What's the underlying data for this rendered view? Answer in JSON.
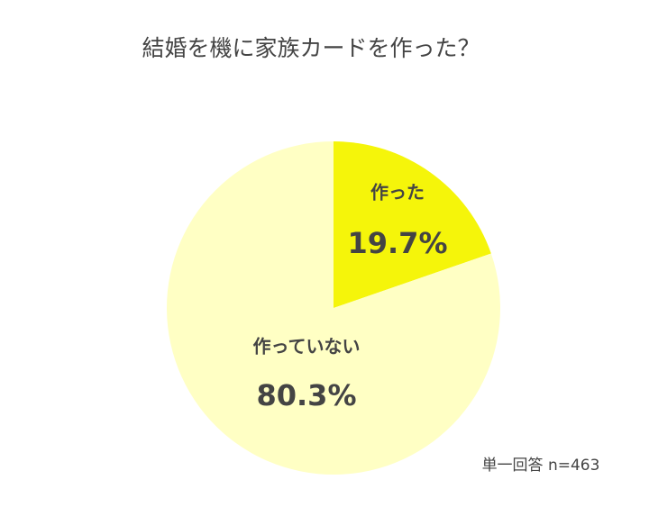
{
  "chart_data": {
    "type": "pie",
    "title": "結婚を機に家族カードを作った？",
    "categories": [
      "作った",
      "作っていない"
    ],
    "values": [
      19.7,
      80.3
    ],
    "value_labels": [
      "19.7%",
      "80.3%"
    ],
    "colors": [
      "#f5f50a",
      "#ffffc4"
    ],
    "note": "単一回答 n=463"
  }
}
